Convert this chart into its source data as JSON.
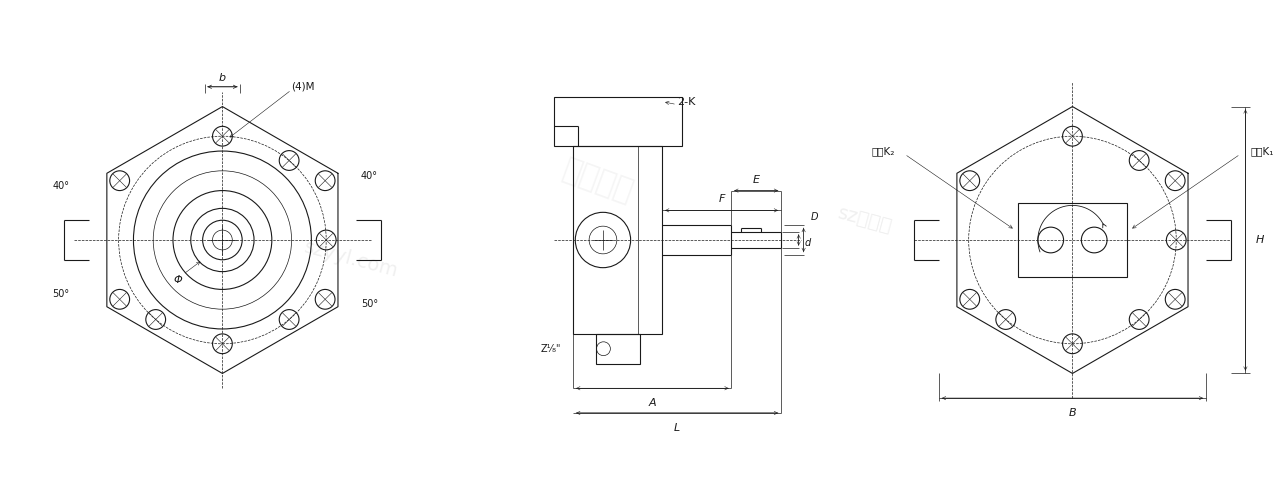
{
  "bg_color": "#ffffff",
  "line_color": "#1a1a1a",
  "fig_width": 12.8,
  "fig_height": 4.8,
  "labels": {
    "b": "b",
    "4M": "(4)M",
    "2K": "2-K",
    "phi": "Φ",
    "angle40_left": "40°",
    "angle50_left": "50°",
    "angle40_right": "40°",
    "angle50_right": "50°",
    "z18": "Z¹⁄₈\"",
    "A": "A",
    "L": "L",
    "E": "E",
    "F": "F",
    "d": "d",
    "D": "D",
    "H": "H",
    "B": "B",
    "outlet": "出口K₂",
    "inlet": "进口K₁"
  }
}
